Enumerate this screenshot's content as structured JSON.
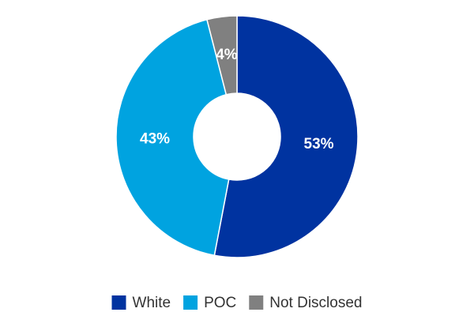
{
  "chart_data": {
    "type": "donut",
    "categories": [
      "White",
      "POC",
      "Not Disclosed"
    ],
    "values": [
      53,
      43,
      4
    ],
    "value_labels": [
      "53%",
      "43%",
      "4%"
    ],
    "colors": [
      "#0033a0",
      "#00a3e0",
      "#808080"
    ],
    "legend": "bottom"
  }
}
